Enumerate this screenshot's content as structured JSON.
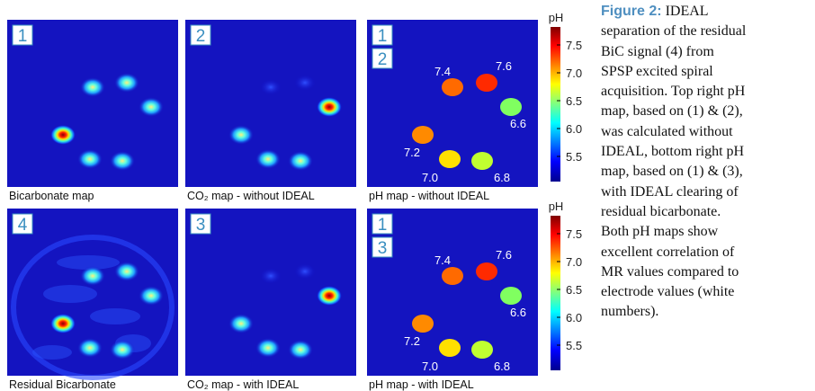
{
  "panels": [
    {
      "numbers": [
        "1"
      ],
      "caption": "Bicarbonate map"
    },
    {
      "numbers": [
        "2"
      ],
      "caption": "CO₂ map - without IDEAL"
    },
    {
      "numbers": [
        "1",
        "2"
      ],
      "caption": "pH map - without IDEAL",
      "ph_labels": [
        "7.4",
        "7.6",
        "6.6",
        "7.2",
        "7.0",
        "6.8"
      ]
    },
    {
      "numbers": [
        "4"
      ],
      "caption": "Residual Bicarbonate"
    },
    {
      "numbers": [
        "3"
      ],
      "caption": "CO₂ map - with IDEAL"
    },
    {
      "numbers": [
        "1",
        "3"
      ],
      "caption": "pH map - with IDEAL",
      "ph_labels": [
        "7.4",
        "7.6",
        "6.6",
        "7.2",
        "7.0",
        "6.8"
      ]
    }
  ],
  "colorbar": {
    "unit": "pH",
    "ticks": [
      "7.5",
      "7.0",
      "6.5",
      "6.0",
      "5.5"
    ]
  },
  "caption": {
    "label": "Figure 2:",
    "lines": [
      "IDEAL",
      "separation of the residual",
      "BiC signal (4) from",
      "SPSP excited spiral",
      "acquisition. Top right pH",
      "map, based on (1) & (2),",
      "was calculated without",
      "IDEAL, bottom right pH",
      "map, based on (1) & (3),",
      "with IDEAL clearing of",
      "residual bicarbonate.",
      "Both pH maps show",
      "excellent correlation of",
      "MR values compared to",
      "electrode values (white",
      "numbers)."
    ]
  }
}
